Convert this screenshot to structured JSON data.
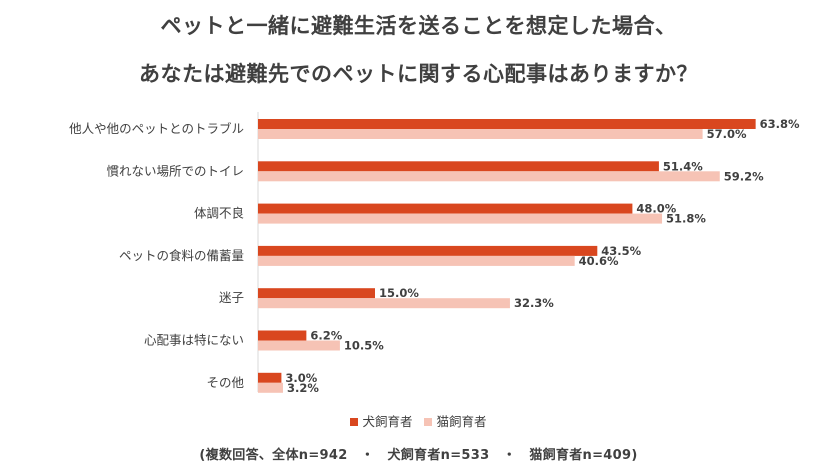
{
  "header": {
    "title_line1": "ペットと一緒に避難生活を送ることを想定した場合、",
    "title_line2": "あなたは避難先でのペットに関する心配事はありますか？"
  },
  "chart_data": {
    "type": "bar",
    "orientation": "horizontal",
    "categories": [
      "他人や他のペットとのトラブル",
      "慣れない場所でのトイレ",
      "体調不良",
      "ペットの食料の備蓄量",
      "迷子",
      "心配事は特にない",
      "その他"
    ],
    "series": [
      {
        "name": "犬飼育者",
        "color": "#d9471f",
        "values": [
          63.8,
          51.4,
          48.0,
          43.5,
          15.0,
          6.2,
          3.0
        ],
        "labels": [
          "63.8%",
          "51.4%",
          "48.0%",
          "43.5%",
          "15.0%",
          "6.2%",
          "3.0%"
        ]
      },
      {
        "name": "猫飼育者",
        "color": "#f6c3b5",
        "values": [
          57.0,
          59.2,
          51.8,
          40.6,
          32.3,
          10.5,
          3.2
        ],
        "labels": [
          "57.0%",
          "59.2%",
          "51.8%",
          "40.6%",
          "32.3%",
          "10.5%",
          "3.2%"
        ]
      }
    ],
    "xlim": [
      0,
      70
    ],
    "legend_position": "bottom",
    "axis_color": "#d9d9d9"
  },
  "footnote": "(複数回答、全体n=942　・　犬飼育者n=533　・　猫飼育者n=409)"
}
